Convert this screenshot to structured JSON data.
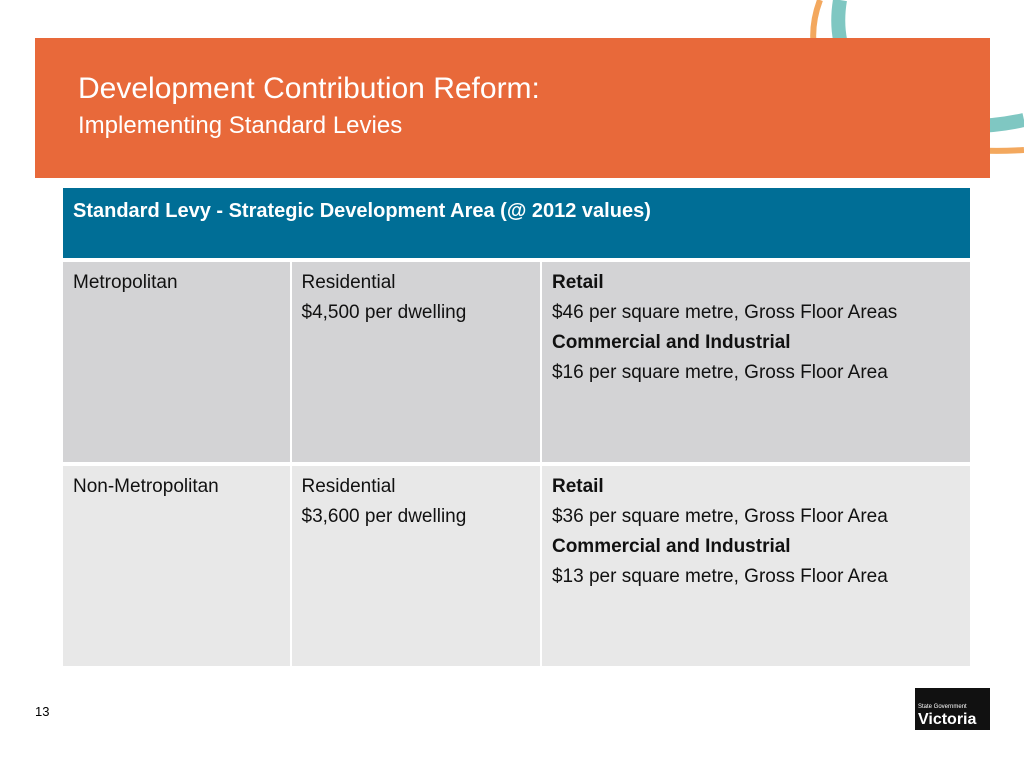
{
  "header": {
    "title": "Development Contribution Reform:",
    "subtitle": "Implementing Standard Levies"
  },
  "table": {
    "header": "Standard Levy - Strategic Development Area (@ 2012 values)",
    "rows": [
      {
        "region": "Metropolitan",
        "residential": {
          "label": "Residential",
          "levy": "$4,500 per dwelling"
        },
        "non_residential": [
          {
            "label": "Retail",
            "levy": "$46 per square metre, Gross Floor Areas"
          },
          {
            "label": "Commercial and Industrial",
            "levy": "$16 per square metre, Gross Floor Area"
          }
        ]
      },
      {
        "region": "Non-Metropolitan",
        "residential": {
          "label": "Residential",
          "levy": "$3,600 per dwelling"
        },
        "non_residential": [
          {
            "label": "Retail",
            "levy": "$36 per square metre, Gross Floor Area"
          },
          {
            "label": "Commercial and Industrial",
            "levy": "$13 per square metre, Gross Floor Area"
          }
        ]
      }
    ]
  },
  "footer": {
    "page_number": "13",
    "logo": {
      "line1": "State Government",
      "line2": "Victoria"
    }
  }
}
